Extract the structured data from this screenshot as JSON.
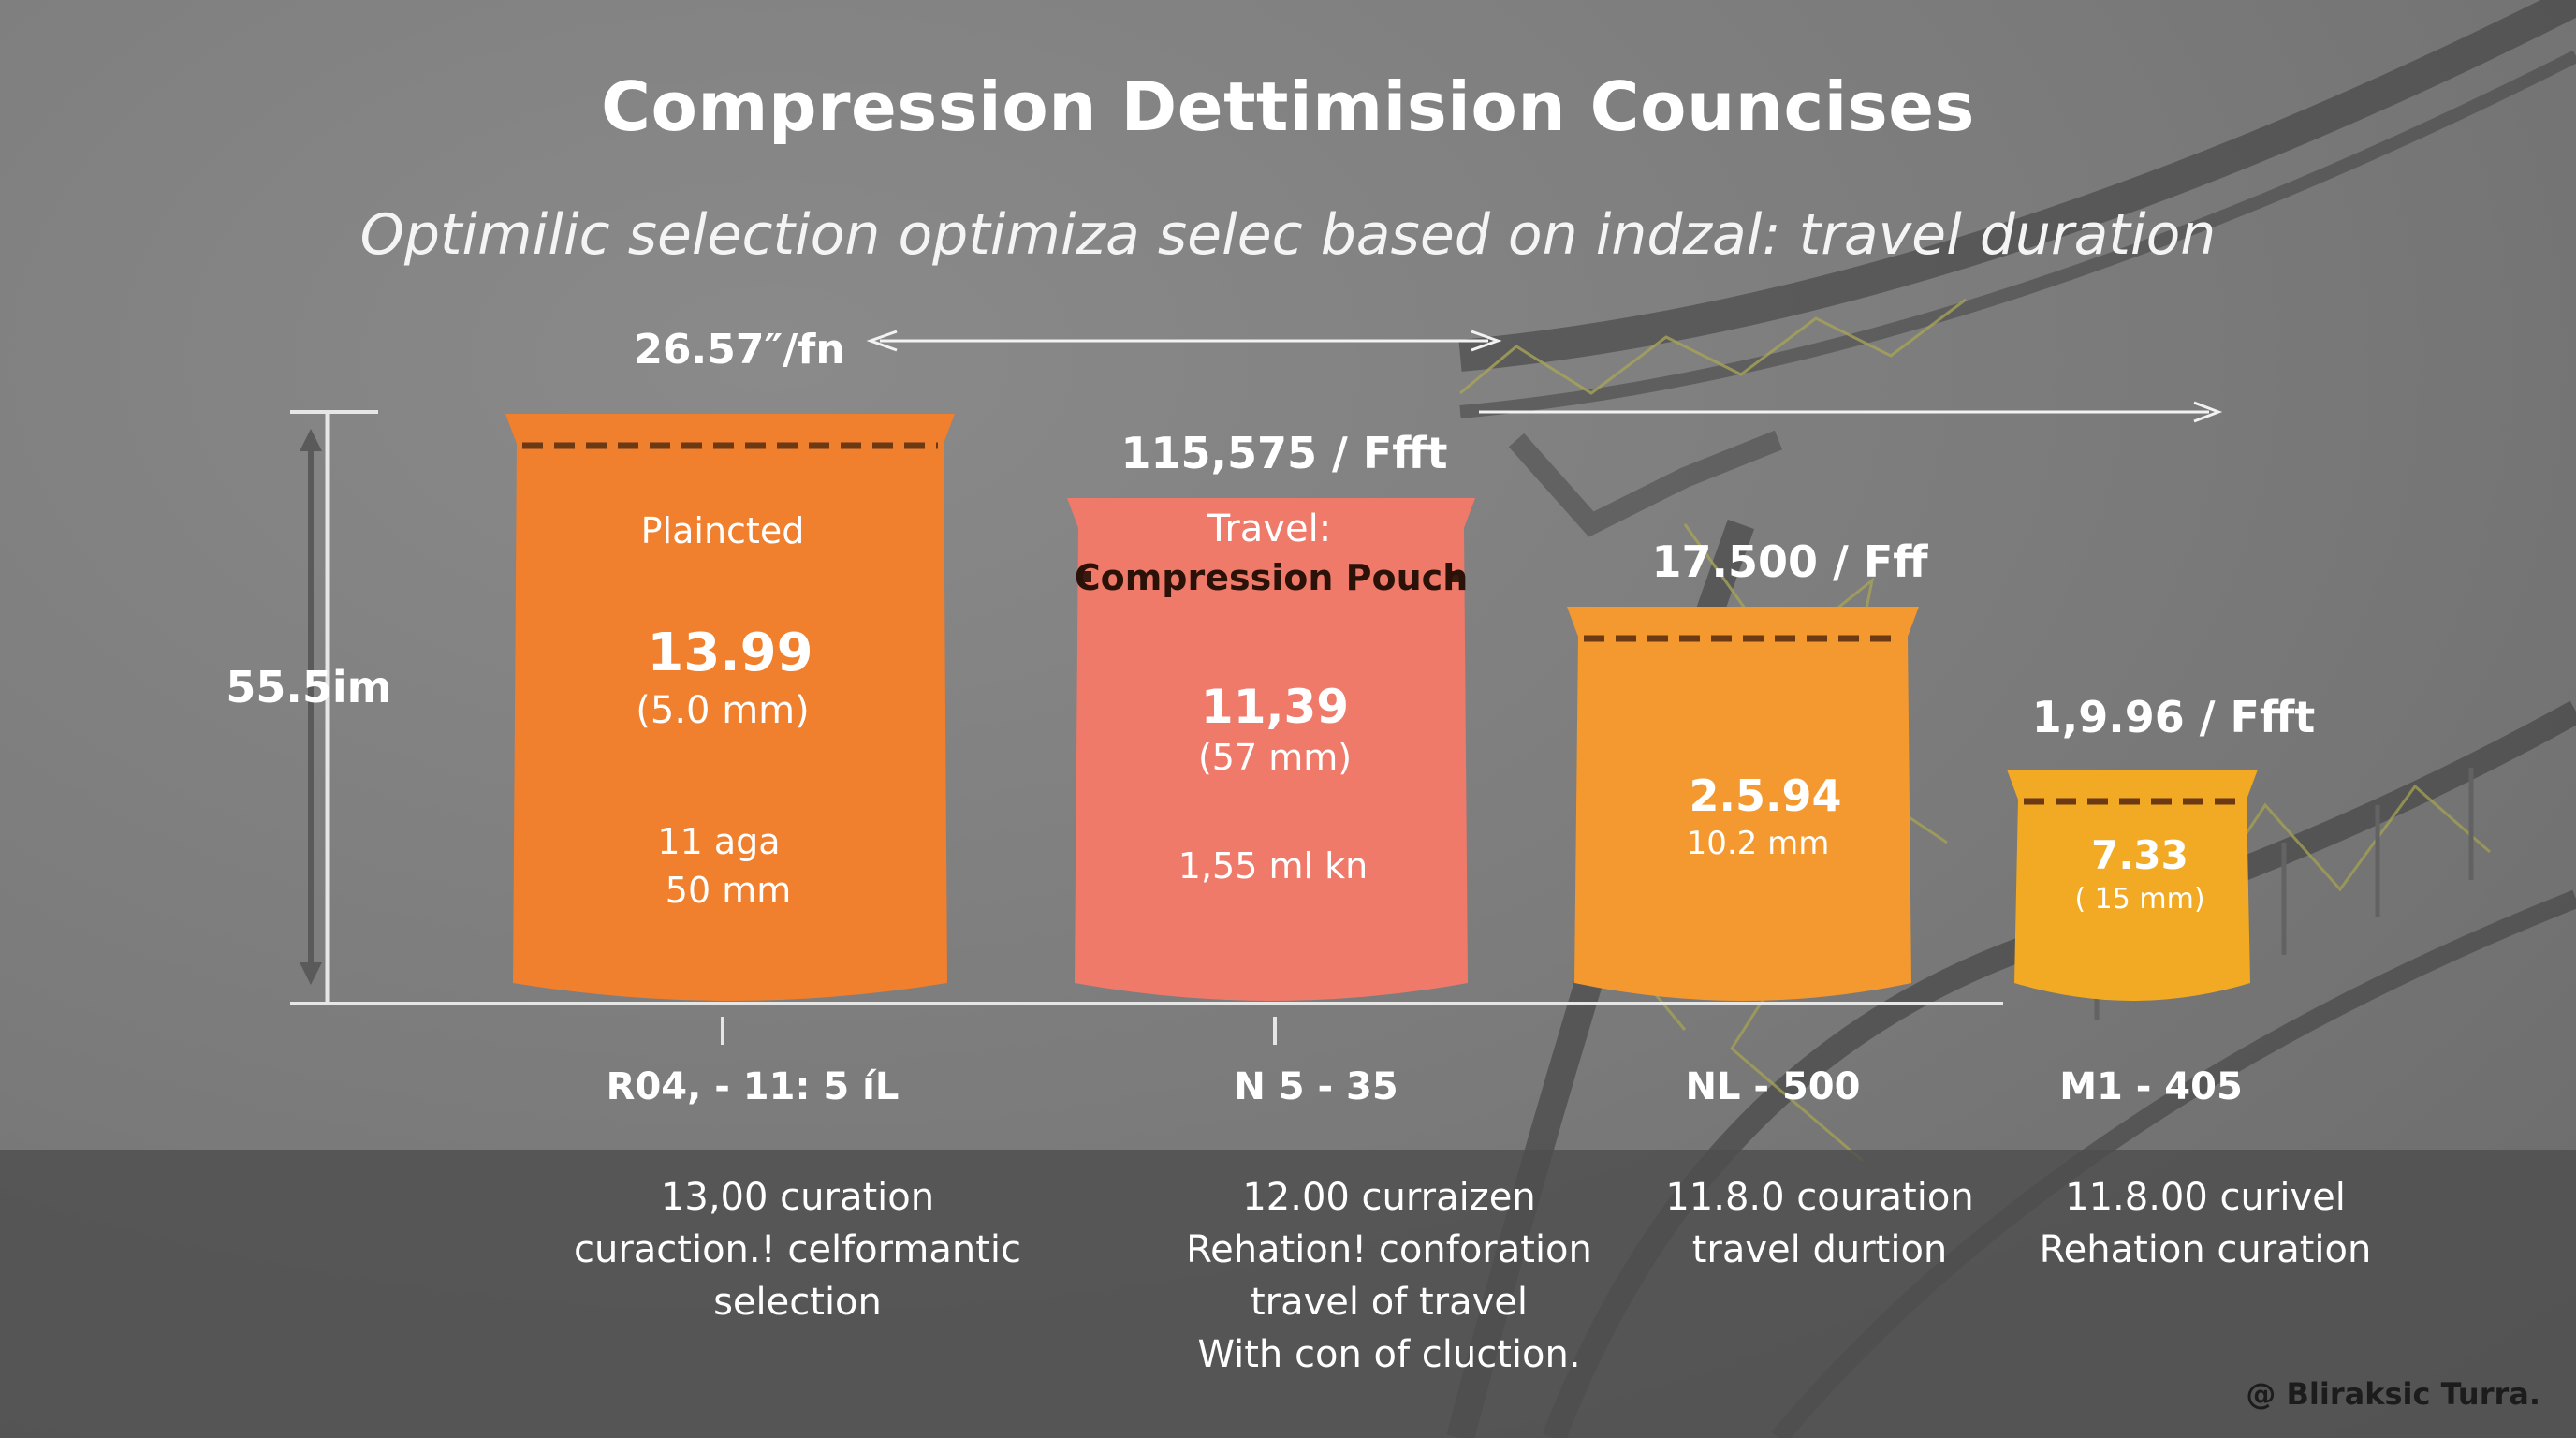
{
  "title": "Compression Dettimision Councises",
  "subtitle": "Optimilic selection optimiza selec based on indzal: travel duration",
  "credit": "@ Bliraksic Turra.",
  "chart_data": {
    "type": "bar",
    "title": "Compression Dettimision Councises",
    "subtitle": "Optimilic selection optimiza selec based on indzal: travel duration",
    "y_axis_label": "55.5im",
    "top_arrow_label": "26.57″/fn",
    "grid": false,
    "categories": [
      "R04, - 11: 5 íL",
      "N 5 - 35",
      "NL - 500",
      "M1 - 405"
    ],
    "values": [
      13.99,
      11.39,
      2.594,
      7.33
    ],
    "ylim": [
      0,
      14.5
    ],
    "colors": [
      "#f07f2e",
      "#ef7a6a",
      "#f4992f",
      "#f2aa25"
    ],
    "bars": [
      {
        "category": "R04, - 11: 5 íL",
        "value": 13.99,
        "top_label": "",
        "header": "Plaincted",
        "header2": "",
        "value_label": "13.99",
        "sub_label": "(5.0 mm)",
        "extra1": "11 aga",
        "extra2": "50 mm",
        "dashed": true,
        "caption": [
          "13,00  curation",
          "curaction.! celformantic",
          "selection"
        ]
      },
      {
        "category": "N 5 - 35",
        "value": 11.39,
        "top_label": "115,575 / Ffft",
        "header": "Travel:",
        "header2": "Compression Pouch",
        "value_label": "11,39",
        "sub_label": "(57 mm)",
        "extra1": "1,55 ml kn",
        "extra2": "",
        "dashed": false,
        "caption": [
          "12.00 curraizen",
          "Rehation! conforation",
          "travel of travel",
          "With con of cluction."
        ]
      },
      {
        "category": "NL - 500",
        "value": 2.594,
        "top_label": "17.500 / Fff",
        "header": "",
        "header2": "",
        "value_label": "2.5.94",
        "sub_label": "10.2 mm",
        "extra1": "",
        "extra2": "",
        "dashed": true,
        "caption": [
          "11.8.0 couration",
          "travel durtion"
        ]
      },
      {
        "category": "M1 - 405",
        "value": 7.33,
        "top_label": "1,9.96 / Ffft",
        "header": "",
        "header2": "",
        "value_label": "7.33",
        "sub_label": "( 15 mm)",
        "extra1": "",
        "extra2": "",
        "dashed": true,
        "caption": [
          "11.8.00 curivel",
          "Rehation curation"
        ]
      }
    ]
  }
}
